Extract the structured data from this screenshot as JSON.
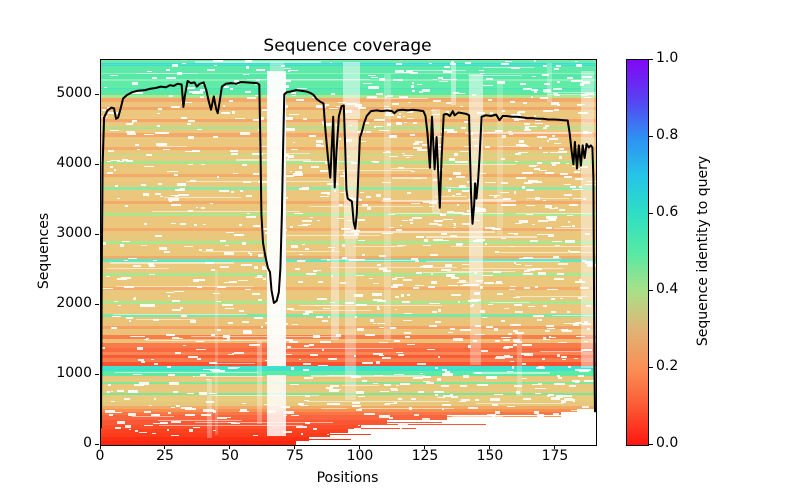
{
  "title": "Sequence coverage",
  "axes": {
    "xlabel": "Positions",
    "ylabel": "Sequences"
  },
  "colorbar": {
    "label": "Sequence identity to query"
  },
  "chart_data": {
    "type": "heatmap",
    "subtype": "msa-coverage-with-line",
    "title": "Sequence coverage",
    "xlabel": "Positions",
    "ylabel": "Sequences",
    "xlim": [
      0,
      190.4
    ],
    "ylim": [
      0,
      5500
    ],
    "x_tick_values": [
      0,
      25,
      50,
      75,
      100,
      125,
      150,
      175
    ],
    "x_tick_labels": [
      "0",
      "25",
      "50",
      "75",
      "100",
      "125",
      "150",
      "175"
    ],
    "y_tick_values": [
      0,
      1000,
      2000,
      3000,
      4000,
      5000
    ],
    "y_tick_labels": [
      "0",
      "1000",
      "2000",
      "3000",
      "4000",
      "5000"
    ],
    "colorbar_tick_values": [
      0.0,
      0.2,
      0.4,
      0.6,
      0.8,
      1.0
    ],
    "colorbar_tick_labels": [
      "0.0",
      "0.2",
      "0.4",
      "0.6",
      "0.8",
      "1.0"
    ],
    "colorbar_range": [
      0,
      1
    ],
    "colorbar_gradient": [
      [
        0.0,
        "#fe1612"
      ],
      [
        0.1,
        "#fb5a33"
      ],
      [
        0.2,
        "#f99056"
      ],
      [
        0.3,
        "#e0b475"
      ],
      [
        0.4,
        "#a9e088"
      ],
      [
        0.5,
        "#57e9a5"
      ],
      [
        0.6,
        "#2edfc3"
      ],
      [
        0.7,
        "#25c4e8"
      ],
      [
        0.8,
        "#2f8ff2"
      ],
      [
        0.9,
        "#5940f2"
      ],
      [
        1.0,
        "#8207f5"
      ]
    ],
    "line_series": {
      "name": "coverage",
      "color": "#000000",
      "width": 2,
      "points": [
        [
          0,
          250
        ],
        [
          0.3,
          2600
        ],
        [
          0.6,
          4000
        ],
        [
          1.2,
          4680
        ],
        [
          2.5,
          4780
        ],
        [
          4,
          4820
        ],
        [
          5,
          4810
        ],
        [
          5.8,
          4660
        ],
        [
          6.6,
          4680
        ],
        [
          7.5,
          4800
        ],
        [
          8.5,
          4950
        ],
        [
          10,
          5000
        ],
        [
          12,
          5040
        ],
        [
          14,
          5060
        ],
        [
          17,
          5070
        ],
        [
          19,
          5090
        ],
        [
          21,
          5100
        ],
        [
          23,
          5120
        ],
        [
          25,
          5110
        ],
        [
          26.5,
          5140
        ],
        [
          28,
          5130
        ],
        [
          29.5,
          5160
        ],
        [
          31,
          5150
        ],
        [
          31.7,
          4830
        ],
        [
          32.3,
          5000
        ],
        [
          33.3,
          5200
        ],
        [
          34.5,
          5170
        ],
        [
          36,
          5180
        ],
        [
          36.8,
          5120
        ],
        [
          38,
          5160
        ],
        [
          39.5,
          5180
        ],
        [
          40.5,
          5070
        ],
        [
          41.5,
          4900
        ],
        [
          42.3,
          4790
        ],
        [
          43.4,
          4980
        ],
        [
          44.3,
          4800
        ],
        [
          44.9,
          4740
        ],
        [
          45.6,
          4900
        ],
        [
          46.5,
          5120
        ],
        [
          48,
          5160
        ],
        [
          50,
          5170
        ],
        [
          52,
          5160
        ],
        [
          53.8,
          5185
        ],
        [
          56,
          5180
        ],
        [
          58,
          5175
        ],
        [
          60,
          5170
        ],
        [
          60.9,
          5150
        ],
        [
          61.3,
          4300
        ],
        [
          61.7,
          3300
        ],
        [
          62.3,
          2890
        ],
        [
          63.2,
          2700
        ],
        [
          64.2,
          2530
        ],
        [
          65,
          2470
        ],
        [
          65.6,
          2210
        ],
        [
          66.5,
          2030
        ],
        [
          67.6,
          2060
        ],
        [
          68.4,
          2180
        ],
        [
          69,
          2520
        ],
        [
          69.6,
          3300
        ],
        [
          70.1,
          4300
        ],
        [
          70.5,
          5010
        ],
        [
          71.5,
          5040
        ],
        [
          73,
          5050
        ],
        [
          75,
          5070
        ],
        [
          77,
          5060
        ],
        [
          79,
          5050
        ],
        [
          80.5,
          5030
        ],
        [
          81.8,
          5000
        ],
        [
          83,
          4940
        ],
        [
          84.5,
          4900
        ],
        [
          85.6,
          4880
        ],
        [
          86.2,
          4550
        ],
        [
          87.3,
          4100
        ],
        [
          88.2,
          3820
        ],
        [
          88.8,
          4300
        ],
        [
          89.3,
          4690
        ],
        [
          89.9,
          3680
        ],
        [
          90.6,
          4200
        ],
        [
          91.5,
          4700
        ],
        [
          92.5,
          4840
        ],
        [
          93.4,
          4850
        ],
        [
          93.9,
          4300
        ],
        [
          94.4,
          3650
        ],
        [
          94.9,
          3520
        ],
        [
          95.7,
          3500
        ],
        [
          96.5,
          3480
        ],
        [
          97.2,
          3180
        ],
        [
          97.8,
          3090
        ],
        [
          98.4,
          3300
        ],
        [
          99,
          3900
        ],
        [
          99.6,
          4390
        ],
        [
          100.4,
          4480
        ],
        [
          101.2,
          4600
        ],
        [
          102.2,
          4700
        ],
        [
          103.8,
          4770
        ],
        [
          106,
          4780
        ],
        [
          108,
          4770
        ],
        [
          110,
          4780
        ],
        [
          112,
          4770
        ],
        [
          112.8,
          4740
        ],
        [
          114,
          4780
        ],
        [
          116,
          4790
        ],
        [
          118,
          4780
        ],
        [
          120,
          4790
        ],
        [
          122,
          4780
        ],
        [
          124,
          4770
        ],
        [
          124.8,
          4700
        ],
        [
          125.6,
          4450
        ],
        [
          126.5,
          3960
        ],
        [
          127.3,
          4690
        ],
        [
          128.3,
          3940
        ],
        [
          129.1,
          4400
        ],
        [
          129.7,
          3900
        ],
        [
          130.3,
          3390
        ],
        [
          131,
          4100
        ],
        [
          131.8,
          4720
        ],
        [
          133,
          4730
        ],
        [
          134.2,
          4700
        ],
        [
          135.3,
          4770
        ],
        [
          136,
          4710
        ],
        [
          137.5,
          4750
        ],
        [
          139,
          4740
        ],
        [
          140.5,
          4730
        ],
        [
          141.6,
          4710
        ],
        [
          141.9,
          4200
        ],
        [
          142.3,
          3600
        ],
        [
          142.9,
          3160
        ],
        [
          143.5,
          3420
        ],
        [
          143.9,
          3740
        ],
        [
          144.4,
          3520
        ],
        [
          145,
          3760
        ],
        [
          145.6,
          4100
        ],
        [
          146.4,
          4690
        ],
        [
          148,
          4710
        ],
        [
          150,
          4700
        ],
        [
          152,
          4720
        ],
        [
          153.3,
          4640
        ],
        [
          154.5,
          4700
        ],
        [
          156,
          4700
        ],
        [
          158,
          4690
        ],
        [
          160,
          4690
        ],
        [
          162,
          4680
        ],
        [
          164,
          4670
        ],
        [
          166,
          4670
        ],
        [
          168,
          4660
        ],
        [
          170,
          4660
        ],
        [
          172,
          4650
        ],
        [
          174,
          4650
        ],
        [
          176,
          4645
        ],
        [
          178,
          4640
        ],
        [
          179.5,
          4635
        ],
        [
          180.3,
          4450
        ],
        [
          181,
          4200
        ],
        [
          181.7,
          4010
        ],
        [
          182.3,
          4330
        ],
        [
          183.1,
          3950
        ],
        [
          183.8,
          4280
        ],
        [
          184.6,
          3990
        ],
        [
          185.3,
          4280
        ],
        [
          186,
          4100
        ],
        [
          186.8,
          4300
        ],
        [
          187.6,
          4250
        ],
        [
          188.4,
          4280
        ],
        [
          189,
          4250
        ],
        [
          189.4,
          3800
        ],
        [
          189.6,
          2500
        ],
        [
          189.8,
          1200
        ],
        [
          190,
          480
        ]
      ]
    },
    "identity_bands": [
      [
        5500,
        5462,
        "#6feab0"
      ],
      [
        5462,
        5442,
        "#3edcd6"
      ],
      [
        5442,
        5425,
        "#55e7b2"
      ],
      [
        5425,
        5412,
        "#38dcd8"
      ],
      [
        5412,
        5320,
        "#5ce9aa"
      ],
      [
        5320,
        5300,
        "#8df1bc"
      ],
      [
        5300,
        5230,
        "#57e8a8"
      ],
      [
        5230,
        5200,
        "#8af0b8"
      ],
      [
        5200,
        5105,
        "#60eba6"
      ],
      [
        5105,
        5085,
        "#45e3c0"
      ],
      [
        5085,
        5000,
        "#5be8a4"
      ],
      [
        5000,
        4958,
        "#b2e68c"
      ],
      [
        4958,
        4898,
        "#f3a96b"
      ],
      [
        4898,
        4825,
        "#edc47c"
      ],
      [
        4825,
        4780,
        "#f1a76a"
      ],
      [
        4780,
        4655,
        "#ecc77e"
      ],
      [
        4655,
        4610,
        "#f3a86a"
      ],
      [
        4610,
        4538,
        "#eac87e"
      ],
      [
        4538,
        4512,
        "#9de897"
      ],
      [
        4512,
        4452,
        "#ebc87d"
      ],
      [
        4452,
        4405,
        "#f2a96b"
      ],
      [
        4405,
        4255,
        "#ebc87d"
      ],
      [
        4255,
        4212,
        "#f4ab6b"
      ],
      [
        4212,
        4145,
        "#e9c87e"
      ],
      [
        4145,
        4122,
        "#aee78c"
      ],
      [
        4122,
        4052,
        "#eac87d"
      ],
      [
        4052,
        4018,
        "#a2e790"
      ],
      [
        4018,
        3865,
        "#ebc77c"
      ],
      [
        3865,
        3822,
        "#f4aa6a"
      ],
      [
        3822,
        3685,
        "#eac87d"
      ],
      [
        3685,
        3648,
        "#8ce9a2"
      ],
      [
        3648,
        3482,
        "#ebc77d"
      ],
      [
        3482,
        3442,
        "#f3aa6a"
      ],
      [
        3442,
        3312,
        "#e9c87e"
      ],
      [
        3312,
        3275,
        "#abe78d"
      ],
      [
        3275,
        3105,
        "#eac77d"
      ],
      [
        3105,
        3062,
        "#f4ab6b"
      ],
      [
        3062,
        2912,
        "#e9c87e"
      ],
      [
        2912,
        2872,
        "#a6e78f"
      ],
      [
        2872,
        2705,
        "#ebc77c"
      ],
      [
        2705,
        2655,
        "#f3aa6a"
      ],
      [
        2655,
        2608,
        "#5ae9c1"
      ],
      [
        2608,
        2455,
        "#eac87d"
      ],
      [
        2455,
        2415,
        "#a3e790"
      ],
      [
        2415,
        2255,
        "#ebc77c"
      ],
      [
        2255,
        2215,
        "#f4ab6b"
      ],
      [
        2215,
        2055,
        "#e9c87e"
      ],
      [
        2055,
        2015,
        "#a6e78f"
      ],
      [
        2015,
        1875,
        "#ebc77d"
      ],
      [
        1875,
        1832,
        "#77e9a6"
      ],
      [
        1832,
        1705,
        "#eac379"
      ],
      [
        1705,
        1662,
        "#f5a064"
      ],
      [
        1662,
        1565,
        "#ecc179"
      ],
      [
        1565,
        1512,
        "#f87e4e"
      ],
      [
        1512,
        1455,
        "#edbf77"
      ],
      [
        1455,
        1392,
        "#f97a4a"
      ],
      [
        1392,
        1332,
        "#fa6a40"
      ],
      [
        1332,
        1292,
        "#f98756"
      ],
      [
        1292,
        1242,
        "#fa5c38"
      ],
      [
        1242,
        1192,
        "#f97c4c"
      ],
      [
        1192,
        1122,
        "#fa5132"
      ],
      [
        1122,
        1058,
        "#3fe0cc"
      ],
      [
        1058,
        992,
        "#5deaa5"
      ],
      [
        992,
        948,
        "#e8c77b"
      ],
      [
        948,
        905,
        "#e5cb7e"
      ],
      [
        905,
        868,
        "#80e899"
      ],
      [
        868,
        812,
        "#e9c77c"
      ],
      [
        812,
        748,
        "#e7ca7d"
      ],
      [
        748,
        708,
        "#77e898"
      ],
      [
        708,
        612,
        "#e9cb7e"
      ],
      [
        612,
        562,
        "#e6c87c"
      ],
      [
        562,
        520,
        "#f2a866"
      ],
      [
        520,
        472,
        "#f6914f",
        0,
        183
      ],
      [
        472,
        422,
        "#f87747",
        0,
        177
      ],
      [
        422,
        352,
        "#fa6540",
        0,
        133
      ],
      [
        352,
        292,
        "#fa5835",
        0,
        110
      ],
      [
        292,
        232,
        "#fb4e2b",
        0,
        100
      ],
      [
        232,
        172,
        "#fb4322",
        0,
        95
      ],
      [
        172,
        112,
        "#fc3a1c",
        0,
        88
      ],
      [
        112,
        52,
        "#fc2f15",
        0,
        80
      ],
      [
        52,
        0,
        "#fd2410",
        0,
        75
      ],
      [
        412,
        402,
        "#f59a5d",
        133,
        177
      ],
      [
        330,
        320,
        "#fa6038",
        110,
        131
      ],
      [
        302,
        294,
        "#fa5835",
        110,
        148
      ],
      [
        242,
        234,
        "#fb4f2c",
        100,
        121
      ],
      [
        152,
        144,
        "#fc3a1c",
        88,
        104
      ],
      [
        92,
        84,
        "#fc3015",
        80,
        96
      ]
    ],
    "gap_streaks": [
      [
        63.8,
        71.3,
        1125,
        5345,
        0.94
      ],
      [
        63.8,
        71.3,
        130,
        995,
        0.82
      ],
      [
        65,
        70.5,
        5345,
        5462,
        0.35
      ],
      [
        88.5,
        91.5,
        1500,
        4600,
        0.4
      ],
      [
        93,
        99.5,
        4650,
        5470,
        0.5
      ],
      [
        93.5,
        99,
        2950,
        4650,
        0.5
      ],
      [
        94,
        98,
        650,
        2950,
        0.33
      ],
      [
        109,
        111.5,
        1500,
        5300,
        0.26
      ],
      [
        127.5,
        130.5,
        3300,
        4800,
        0.35
      ],
      [
        134.5,
        136.5,
        4850,
        5460,
        0.45
      ],
      [
        141.5,
        147,
        2300,
        5300,
        0.5
      ],
      [
        142,
        146,
        1150,
        2300,
        0.3
      ],
      [
        152.5,
        154.5,
        3000,
        5200,
        0.22
      ],
      [
        160,
        162,
        700,
        1600,
        0.25
      ],
      [
        171.5,
        173.5,
        4900,
        5460,
        0.28
      ],
      [
        184.5,
        189.5,
        1100,
        5350,
        0.42
      ],
      [
        60,
        62,
        300,
        1500,
        0.3
      ],
      [
        40.8,
        42.6,
        100,
        950,
        0.3
      ],
      [
        43.8,
        45.2,
        150,
        2500,
        0.22
      ]
    ],
    "speckle": {
      "seed": 11,
      "short": 950,
      "long": 80,
      "right_extra": 260
    }
  }
}
